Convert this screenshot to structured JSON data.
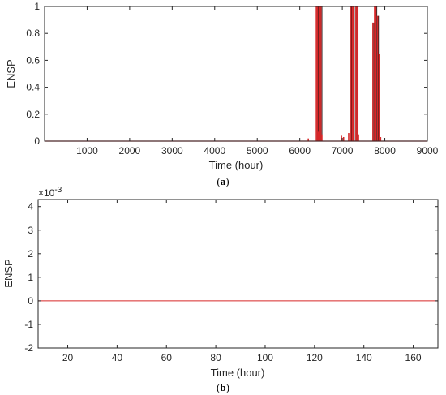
{
  "chart_data": [
    {
      "panel_label_prefix": "(",
      "panel_label_letter": "a",
      "panel_label_suffix": ")",
      "type": "line",
      "title": "",
      "xlabel": "Time (hour)",
      "ylabel": "ENSP",
      "xlim": [
        0,
        9000
      ],
      "ylim": [
        0,
        1
      ],
      "xticks": [
        "1000",
        "2000",
        "3000",
        "4000",
        "5000",
        "6000",
        "7000",
        "8000",
        "9000"
      ],
      "yticks": [
        "0",
        "0.2",
        "0.4",
        "0.6",
        "0.8",
        "1"
      ],
      "line_color": "#d62728",
      "dark_color": "#000000",
      "baseline": 0,
      "spikes": [
        {
          "x": 6200,
          "y": 0.02
        },
        {
          "x": 6390,
          "y": 1.0
        },
        {
          "x": 6420,
          "y": 1.0
        },
        {
          "x": 6440,
          "y": 0.07
        },
        {
          "x": 6470,
          "y": 1.0
        },
        {
          "x": 6500,
          "y": 1.0
        },
        {
          "x": 6520,
          "y": 0.05
        },
        {
          "x": 6980,
          "y": 0.04
        },
        {
          "x": 7030,
          "y": 0.03
        },
        {
          "x": 7150,
          "y": 0.06
        },
        {
          "x": 7190,
          "y": 1.0
        },
        {
          "x": 7230,
          "y": 1.0
        },
        {
          "x": 7260,
          "y": 1.0
        },
        {
          "x": 7320,
          "y": 1.0
        },
        {
          "x": 7350,
          "y": 1.0
        },
        {
          "x": 7380,
          "y": 0.05
        },
        {
          "x": 7720,
          "y": 0.88
        },
        {
          "x": 7760,
          "y": 1.0
        },
        {
          "x": 7790,
          "y": 1.0
        },
        {
          "x": 7830,
          "y": 0.93
        },
        {
          "x": 7870,
          "y": 0.65
        },
        {
          "x": 7900,
          "y": 0.03
        }
      ]
    },
    {
      "panel_label_prefix": "(",
      "panel_label_letter": "b",
      "panel_label_suffix": ")",
      "type": "line",
      "title": "",
      "xlabel": "Time (hour)",
      "ylabel": "ENSP",
      "exponent_base": "×10",
      "exponent_power": "-3",
      "xlim": [
        8,
        170
      ],
      "ylim": [
        -2,
        4.3
      ],
      "xticks": [
        "20",
        "40",
        "60",
        "80",
        "100",
        "120",
        "140",
        "160"
      ],
      "yticks": [
        "-2",
        "-1",
        "0",
        "1",
        "2",
        "3",
        "4"
      ],
      "line_color": "#d62728",
      "series": [
        {
          "x": [
            8,
            170
          ],
          "values": [
            0,
            0
          ]
        }
      ]
    }
  ]
}
